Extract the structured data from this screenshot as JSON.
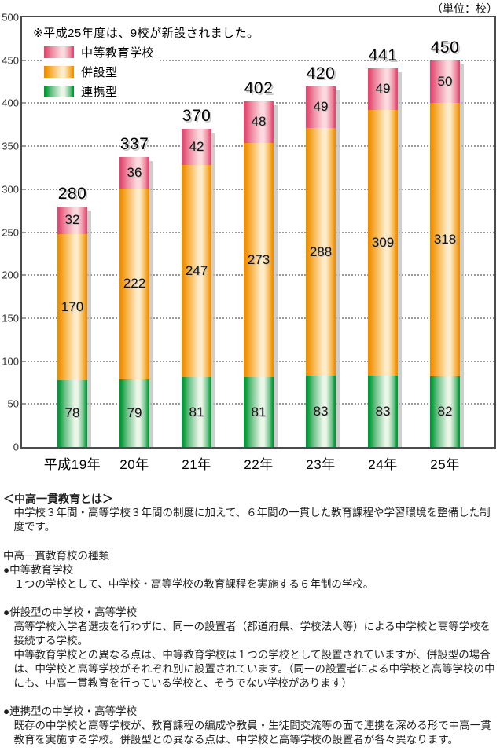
{
  "unit_label": "（単位：校）",
  "chart_data": {
    "type": "stacked-bar",
    "note": "※平成25年度は、9校が新設されました。",
    "categories": [
      "平成19年",
      "20年",
      "21年",
      "22年",
      "23年",
      "24年",
      "25年"
    ],
    "series": [
      {
        "name": "連携型",
        "color_dark": "#009934",
        "color_mid": "#6ec289",
        "color_light": "#ebf6e8",
        "values": [
          78,
          79,
          81,
          81,
          83,
          83,
          82
        ]
      },
      {
        "name": "併設型",
        "color_dark": "#f08e00",
        "color_mid": "#f8b54a",
        "color_light": "#fdeccb",
        "values": [
          170,
          222,
          247,
          273,
          288,
          309,
          318
        ]
      },
      {
        "name": "中等教育学校",
        "color_dark": "#e3486e",
        "color_mid": "#ef89a1",
        "color_light": "#fadade",
        "values": [
          32,
          36,
          42,
          48,
          49,
          49,
          50
        ]
      }
    ],
    "totals": [
      280,
      337,
      370,
      402,
      420,
      441,
      450
    ],
    "legend_order": [
      "中等教育学校",
      "併設型",
      "連携型"
    ],
    "ylim": [
      0,
      500
    ],
    "ytick_step": 50,
    "grid": "dotted-horizontal",
    "legend_position": "top-left-inside",
    "shadow_color": "#bdbdbd",
    "axis_color": "#4c4c4c"
  },
  "footer": {
    "heading": "＜中高一貫教育とは＞",
    "intro": "中学校３年間・高等学校３年間の制度に加えて、６年間の一貫した教育課程や学習環境を整備した制度です。",
    "types_title": "中高一貫教育校の種類",
    "sections": [
      {
        "title": "●中等教育学校",
        "body": [
          "１つの学校として、中学校・高等学校の教育課程を実施する６年制の学校。"
        ]
      },
      {
        "title": "●併設型の中学校・高等学校",
        "body": [
          "高等学校入学者選抜を行わずに、同一の設置者（都道府県、学校法人等）による中学校と高等学校を接続する学校。",
          "中等教育学校との異なる点は、中等教育学校は１つの学校として設置されていますが、併設型の場合は、中学校と高等学校がそれぞれ別に設置されています。（同一の設置者による中学校と高等学校の中にも、中高一貫教育を行っている学校と、そうでない学校があります）"
        ]
      },
      {
        "title": "●連携型の中学校・高等学校",
        "body": [
          "既存の中学校と高等学校が、教育課程の編成や教員・生徒間交流等の面で連携を深める形で中高一貫教育を実施する学校。併設型との異なる点は、中学校と高等学校の設置者が各々異なります。"
        ]
      }
    ]
  }
}
